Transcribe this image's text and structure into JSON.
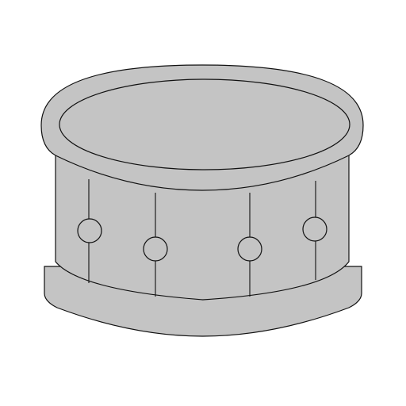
{
  "illustration": {
    "subject": "drum-icon",
    "colors": {
      "background": "#ffffff",
      "fill": "#c4c4c4",
      "stroke": "#111111"
    }
  }
}
